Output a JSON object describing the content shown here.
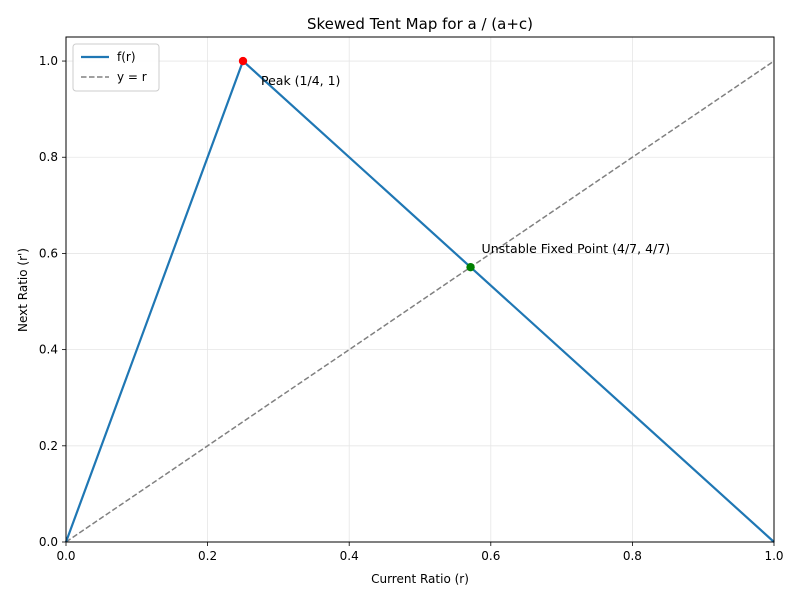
{
  "chart_data": {
    "type": "line",
    "title": "Skewed Tent Map for a / (a+c)",
    "xlabel": "Current Ratio (r)",
    "ylabel": "Next Ratio (r')",
    "xlim": [
      0,
      1
    ],
    "ylim": [
      0,
      1.05
    ],
    "xticks": [
      0,
      0.2,
      0.4,
      0.6,
      0.8,
      1.0
    ],
    "yticks": [
      0,
      0.2,
      0.4,
      0.6,
      0.8,
      1.0
    ],
    "xtick_labels": [
      "0.0",
      "0.2",
      "0.4",
      "0.6",
      "0.8",
      "1.0"
    ],
    "ytick_labels": [
      "0.0",
      "0.2",
      "0.4",
      "0.6",
      "0.8",
      "1.0"
    ],
    "grid": true,
    "legend_position": "upper-left",
    "series": [
      {
        "name": "f(r)",
        "color": "#1f77b4",
        "style": "solid",
        "x": [
          0,
          0.25,
          1.0
        ],
        "y": [
          0,
          1.0,
          0
        ]
      },
      {
        "name": "y = r",
        "color": "#808080",
        "style": "dashed",
        "x": [
          0,
          1.0
        ],
        "y": [
          0,
          1.0
        ]
      }
    ],
    "points": [
      {
        "label": "Peak (1/4, 1)",
        "x": 0.25,
        "y": 1.0,
        "color": "#ff0000"
      },
      {
        "label": "Unstable Fixed Point (4/7, 4/7)",
        "x": 0.5714,
        "y": 0.5714,
        "color": "#008000"
      }
    ]
  }
}
